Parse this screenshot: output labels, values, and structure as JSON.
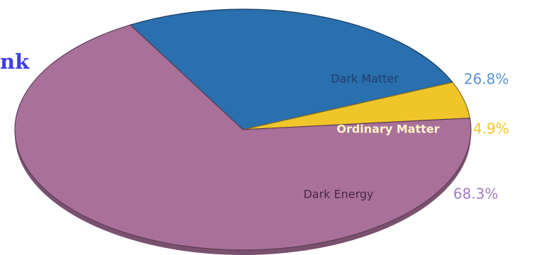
{
  "page": {
    "heading_fragment": "nk"
  },
  "chart_data": {
    "type": "pie",
    "title": "",
    "slices": [
      {
        "label": "Dark Matter",
        "value": 26.8,
        "value_label": "26.8%",
        "color": "#2a6fae",
        "label_color": "#1f3f6a",
        "value_color": "#5b93cf"
      },
      {
        "label": "Ordinary Matter",
        "value": 4.9,
        "value_label": "4.9%",
        "color": "#f0c52a",
        "label_color": "#fff6c7",
        "value_color": "#f0c52a"
      },
      {
        "label": "Dark Energy",
        "value": 68.3,
        "value_label": "68.3%",
        "color": "#a9719a",
        "label_color": "#4a2944",
        "value_color": "#a37cc0"
      }
    ],
    "legend": "none"
  }
}
